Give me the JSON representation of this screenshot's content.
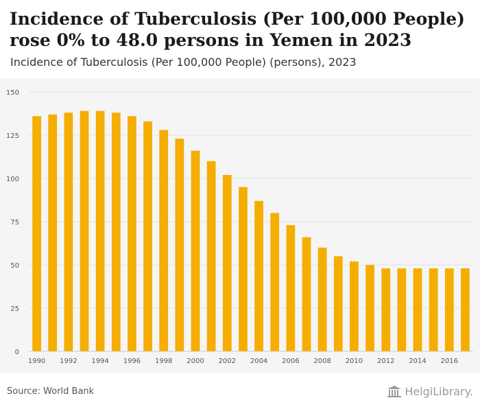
{
  "header": {
    "title": "Incidence of Tuberculosis (Per 100,000 People) rose 0% to 48.0 persons in Yemen in 2023",
    "subtitle": "Incidence of Tuberculosis (Per 100,000 People) (persons), 2023"
  },
  "footer": {
    "source": "Source: World Bank",
    "logo_text": "HelgiLibrary.",
    "logo_icon": "library-building-icon"
  },
  "colors": {
    "bar": "#f5ad00",
    "grid": "#e2e2e2",
    "axis_text": "#555555",
    "background": "#f5f5f5"
  },
  "chart_data": {
    "type": "bar",
    "title": "Incidence of Tuberculosis (Per 100,000 People) rose 0% to 48.0 persons in Yemen in 2023",
    "subtitle": "Incidence of Tuberculosis (Per 100,000 People) (persons), 2023",
    "xlabel": "",
    "ylabel": "",
    "ylim": [
      0,
      150
    ],
    "yticks": [
      0,
      25,
      50,
      75,
      100,
      125,
      150
    ],
    "grid": true,
    "categories": [
      "1990",
      "1991",
      "1992",
      "1993",
      "1994",
      "1995",
      "1996",
      "1997",
      "1998",
      "1999",
      "2000",
      "2001",
      "2002",
      "2003",
      "2004",
      "2005",
      "2006",
      "2007",
      "2008",
      "2009",
      "2010",
      "2011",
      "2012",
      "2013",
      "2014",
      "2015",
      "2016",
      "2017"
    ],
    "xtick_labels": [
      "1990",
      "1992",
      "1994",
      "1996",
      "1998",
      "2000",
      "2002",
      "2004",
      "2006",
      "2008",
      "2010",
      "2012",
      "2014",
      "2016"
    ],
    "values": [
      136,
      137,
      138,
      139,
      139,
      138,
      136,
      133,
      128,
      123,
      116,
      110,
      102,
      95,
      87,
      80,
      73,
      66,
      60,
      55,
      52,
      50,
      48,
      48,
      48,
      48,
      48,
      48
    ]
  }
}
